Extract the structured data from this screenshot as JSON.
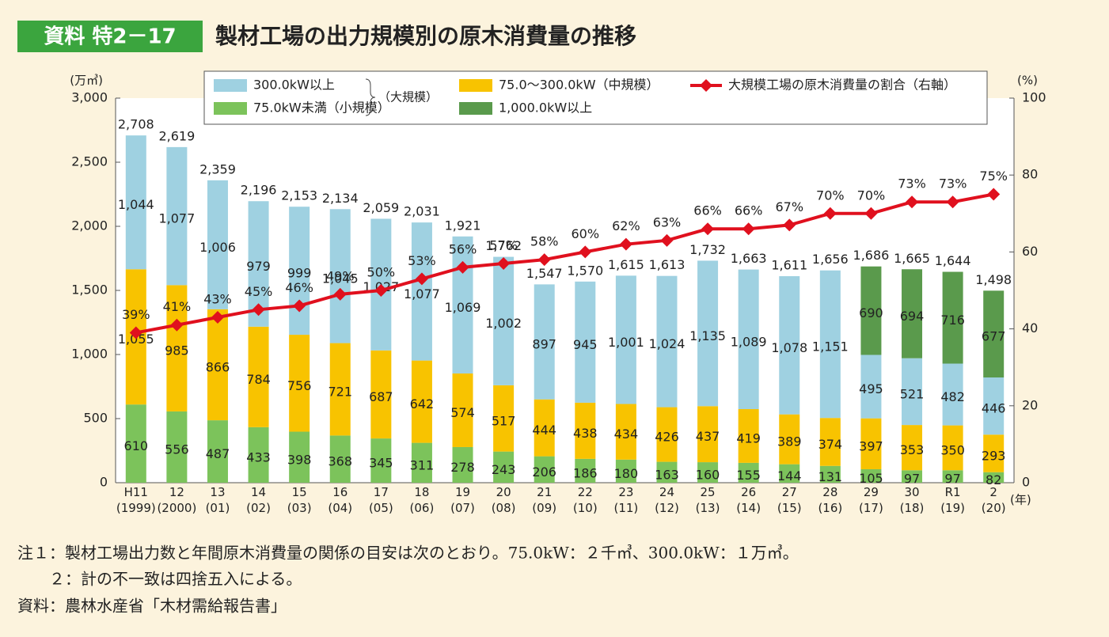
{
  "header": {
    "badge": "資料 特2－17",
    "title": "製材工場の出力規模別の原木消費量の推移"
  },
  "chart_data": {
    "type": "bar",
    "stacked": true,
    "y_unit": "(万㎥)",
    "y2_unit": "(%)",
    "x_unit": "(年)",
    "categories": [
      "H11\n(1999)",
      "12\n(2000)",
      "13\n(01)",
      "14\n(02)",
      "15\n(03)",
      "16\n(04)",
      "17\n(05)",
      "18\n(06)",
      "19\n(07)",
      "20\n(08)",
      "21\n(09)",
      "22\n(10)",
      "23\n(11)",
      "24\n(12)",
      "25\n(13)",
      "26\n(14)",
      "27\n(15)",
      "28\n(16)",
      "29\n(17)",
      "30\n(18)",
      "R1\n(19)",
      "2\n(20)"
    ],
    "ylim": [
      0,
      3000
    ],
    "yticks": [
      0,
      500,
      {
        "value": 1000,
        "label": "1,000"
      },
      {
        "value": 1500,
        "label": "1,500"
      },
      {
        "value": 2000,
        "label": "2,000"
      },
      {
        "value": 2500,
        "label": "2,500"
      },
      {
        "value": 3000,
        "label": "3,000"
      }
    ],
    "y2lim": [
      0,
      100
    ],
    "y2ticks": [
      0,
      20,
      40,
      60,
      80,
      100
    ],
    "legend_group_label": "（大規模）",
    "series": [
      {
        "name": "75.0kW未満（小規模）",
        "color": "#7cc35b",
        "values": [
          610,
          556,
          487,
          433,
          398,
          368,
          345,
          311,
          278,
          243,
          206,
          186,
          180,
          163,
          160,
          155,
          144,
          131,
          105,
          97,
          97,
          82
        ]
      },
      {
        "name": "75.0～300.0kW（中規模）",
        "color": "#f8c300",
        "values": [
          1055,
          985,
          866,
          784,
          756,
          721,
          687,
          642,
          574,
          517,
          444,
          438,
          434,
          426,
          437,
          419,
          389,
          374,
          397,
          353,
          350,
          293
        ],
        "value_labels": [
          "1,055",
          "985",
          "866",
          "784",
          "756",
          "721",
          "687",
          "642",
          "574",
          "517",
          "444",
          "438",
          "434",
          "426",
          "437",
          "419",
          "389",
          "374",
          "397",
          "353",
          "350",
          "293"
        ]
      },
      {
        "name": "300.0kW以上",
        "color": "#9fd1e1",
        "values": [
          1044,
          1077,
          1006,
          979,
          999,
          1045,
          1027,
          1077,
          1069,
          1002,
          897,
          945,
          1001,
          1024,
          1135,
          1089,
          1078,
          1151,
          495,
          521,
          482,
          446
        ],
        "value_labels": [
          "1,044",
          "1,077",
          "1,006",
          "979",
          "999",
          "1,045",
          "1,027",
          "1,077",
          "1,069",
          "1,002",
          "897",
          "945",
          "1,001",
          "1,024",
          "1,135",
          "1,089",
          "1,078",
          "1,151",
          "495",
          "521",
          "482",
          "446"
        ]
      },
      {
        "name": "1,000.0kW以上",
        "color": "#5a9a4c",
        "values": [
          null,
          null,
          null,
          null,
          null,
          null,
          null,
          null,
          null,
          null,
          null,
          null,
          null,
          null,
          null,
          null,
          null,
          null,
          690,
          694,
          716,
          677
        ]
      },
      {
        "name": "大規模工場の原木消費量の割合（右軸）",
        "type": "line",
        "axis": "y2",
        "color": "#e0101e",
        "values": [
          39,
          41,
          43,
          45,
          46,
          49,
          50,
          53,
          56,
          57,
          58,
          60,
          62,
          63,
          66,
          66,
          67,
          70,
          70,
          73,
          73,
          75
        ],
        "value_labels": [
          "39%",
          "41%",
          "43%",
          "45%",
          "46%",
          "49%",
          "50%",
          "53%",
          "56%",
          "57%",
          "58%",
          "60%",
          "62%",
          "63%",
          "66%",
          "66%",
          "67%",
          "70%",
          "70%",
          "73%",
          "73%",
          "75%"
        ]
      }
    ],
    "totals": [
      2708,
      2619,
      2359,
      2196,
      2153,
      2134,
      2059,
      2031,
      1921,
      1762,
      1547,
      1570,
      1615,
      1613,
      1732,
      1663,
      1611,
      1656,
      1686,
      1665,
      1644,
      1498
    ],
    "total_labels": [
      "2,708",
      "2,619",
      "2,359",
      "2,196",
      "2,153",
      "2,134",
      "2,059",
      "2,031",
      "1,921",
      "1,762",
      "1,547",
      "1,570",
      "1,615",
      "1,613",
      "1,732",
      "1,663",
      "1,611",
      "1,656",
      "1,686",
      "1,665",
      "1,644",
      "1,498"
    ]
  },
  "notes": [
    "注１：製材工場出力数と年間原木消費量の関係の目安は次のとおり。75.0kW：２千㎥、300.0kW：１万㎥。",
    "２：計の不一致は四捨五入による。",
    "資料：農林水産省「木材需給報告書」"
  ]
}
